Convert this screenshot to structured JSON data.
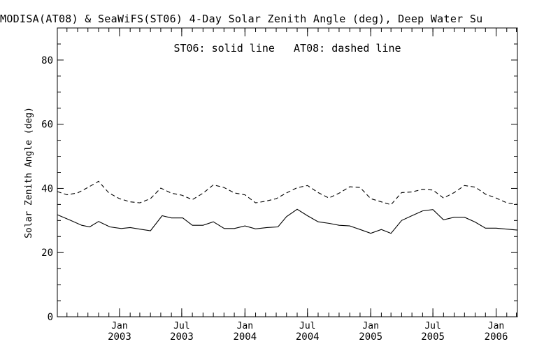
{
  "chart_data": {
    "type": "line",
    "title": "MODISA(AT08) & SeaWiFS(ST06) 4-Day Solar Zenith Angle (deg), Deep Water Su",
    "annotation": "ST06: solid line   AT08: dashed line",
    "ylabel": "Solar Zenith Angle (deg)",
    "xlabel": "",
    "ylim": [
      0,
      90
    ],
    "xlim": [
      "2002-07-04",
      "2006-03-04"
    ],
    "y_ticks": [
      0,
      20,
      40,
      60,
      80
    ],
    "x_tick_labels": [
      {
        "date": "2003-01-01",
        "line1": "Jan",
        "line2": "2003"
      },
      {
        "date": "2003-07-01",
        "line1": "Jul",
        "line2": "2003"
      },
      {
        "date": "2004-01-01",
        "line1": "Jan",
        "line2": "2004"
      },
      {
        "date": "2004-07-01",
        "line1": "Jul",
        "line2": "2004"
      },
      {
        "date": "2005-01-01",
        "line1": "Jan",
        "line2": "2005"
      },
      {
        "date": "2005-07-01",
        "line1": "Jul",
        "line2": "2005"
      },
      {
        "date": "2006-01-01",
        "line1": "Jan",
        "line2": "2006"
      }
    ],
    "x_minor_ticks": [
      "2002-08-01",
      "2002-09-01",
      "2002-10-01",
      "2002-11-01",
      "2002-12-01",
      "2003-01-01",
      "2003-02-01",
      "2003-03-01",
      "2003-04-01",
      "2003-05-01",
      "2003-06-01",
      "2003-07-01",
      "2003-08-01",
      "2003-09-01",
      "2003-10-01",
      "2003-11-01",
      "2003-12-01",
      "2004-01-01",
      "2004-02-01",
      "2004-03-01",
      "2004-04-01",
      "2004-05-01",
      "2004-06-01",
      "2004-07-01",
      "2004-08-01",
      "2004-09-01",
      "2004-10-01",
      "2004-11-01",
      "2004-12-01",
      "2005-01-01",
      "2005-02-01",
      "2005-03-01",
      "2005-04-01",
      "2005-05-01",
      "2005-06-01",
      "2005-07-01",
      "2005-08-01",
      "2005-09-01",
      "2005-10-01",
      "2005-11-01",
      "2005-12-01",
      "2006-01-01",
      "2006-02-01",
      "2006-03-01"
    ],
    "series": [
      {
        "name": "ST06",
        "style": "solid",
        "color": "#000000",
        "x": [
          "2002-07-04",
          "2002-08-12",
          "2002-09-13",
          "2002-10-06",
          "2002-11-01",
          "2002-12-04",
          "2003-01-06",
          "2003-02-01",
          "2003-03-01",
          "2003-04-01",
          "2003-05-05",
          "2003-06-01",
          "2003-07-04",
          "2003-08-01",
          "2003-09-01",
          "2003-10-01",
          "2003-11-02",
          "2003-12-01",
          "2004-01-01",
          "2004-02-01",
          "2004-03-05",
          "2004-04-06",
          "2004-05-01",
          "2004-06-01",
          "2004-07-01",
          "2004-08-01",
          "2004-09-03",
          "2004-10-01",
          "2004-11-01",
          "2004-12-01",
          "2005-01-01",
          "2005-02-01",
          "2005-03-01",
          "2005-04-01",
          "2005-05-01",
          "2005-06-01",
          "2005-07-01",
          "2005-08-01",
          "2005-09-01",
          "2005-10-01",
          "2005-11-01",
          "2005-12-01",
          "2006-01-01",
          "2006-02-01",
          "2006-03-04"
        ],
        "y": [
          31.8,
          30.0,
          28.5,
          28.0,
          29.7,
          28.0,
          27.5,
          27.8,
          27.3,
          26.8,
          31.5,
          30.8,
          30.8,
          28.5,
          28.5,
          29.6,
          27.5,
          27.5,
          28.3,
          27.4,
          27.8,
          28.0,
          31.2,
          33.5,
          31.5,
          29.6,
          29.1,
          28.5,
          28.3,
          27.2,
          26.0,
          27.2,
          26.0,
          30.0,
          31.5,
          33.0,
          33.4,
          30.2,
          31.0,
          31.0,
          29.5,
          27.6,
          27.6,
          27.3,
          27.0
        ]
      },
      {
        "name": "AT08",
        "style": "dashed",
        "color": "#000000",
        "x": [
          "2002-07-04",
          "2002-08-01",
          "2002-09-01",
          "2002-10-01",
          "2002-11-01",
          "2002-12-01",
          "2003-01-01",
          "2003-02-01",
          "2003-03-01",
          "2003-04-01",
          "2003-05-01",
          "2003-06-01",
          "2003-07-01",
          "2003-08-01",
          "2003-09-01",
          "2003-10-01",
          "2003-11-01",
          "2003-12-01",
          "2004-01-01",
          "2004-02-01",
          "2004-03-01",
          "2004-04-01",
          "2004-05-01",
          "2004-06-01",
          "2004-07-01",
          "2004-08-01",
          "2004-09-01",
          "2004-10-01",
          "2004-11-01",
          "2004-12-01",
          "2005-01-01",
          "2005-02-01",
          "2005-03-01",
          "2005-04-01",
          "2005-05-01",
          "2005-06-01",
          "2005-07-01",
          "2005-08-01",
          "2005-09-01",
          "2005-10-01",
          "2005-11-01",
          "2005-12-01",
          "2006-01-01",
          "2006-02-01",
          "2006-03-04"
        ],
        "y": [
          39.0,
          38.0,
          38.6,
          40.3,
          42.2,
          38.6,
          36.8,
          35.8,
          35.5,
          36.8,
          40.1,
          38.5,
          37.9,
          36.5,
          38.5,
          41.1,
          40.3,
          38.6,
          38.0,
          35.5,
          36.0,
          36.8,
          38.6,
          40.2,
          40.9,
          38.7,
          37.0,
          38.5,
          40.5,
          40.3,
          36.8,
          35.8,
          34.9,
          38.7,
          38.9,
          39.7,
          39.5,
          37.0,
          38.7,
          40.9,
          40.4,
          38.2,
          37.0,
          35.5,
          35.0
        ]
      }
    ]
  }
}
